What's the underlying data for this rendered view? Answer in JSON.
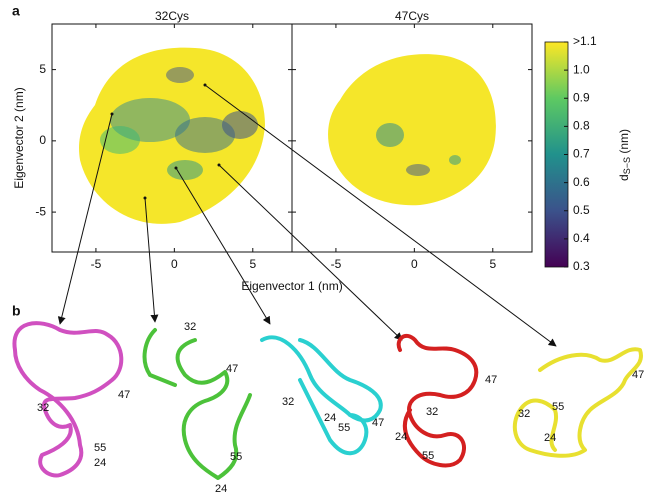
{
  "panel_labels": [
    "a",
    "b"
  ],
  "panels": [
    {
      "title": "32Cys"
    },
    {
      "title": "47Cys"
    }
  ],
  "xlabel": "Eigenvector 1 (nm)",
  "ylabel": "Eigenvector 2 (nm)",
  "xlim": [
    -7.8,
    7.5
  ],
  "ylim": [
    -7.8,
    8.2
  ],
  "xticks": [
    -5,
    0,
    5
  ],
  "yticks": [
    -5,
    0,
    5
  ],
  "colorbar": {
    "label": {
      "main": "d",
      "sub": "S−S",
      "unit": " (nm)"
    },
    "lim": [
      0.3,
      1.1
    ],
    "ticks": [
      {
        "value": 1.1,
        "label": ">1.1"
      },
      {
        "value": 1.0,
        "label": "1.0"
      },
      0.9,
      0.8,
      0.7,
      0.6,
      0.5,
      0.4,
      0.3
    ]
  },
  "structures": [
    {
      "labels": [
        "32",
        "47",
        "55",
        "24"
      ]
    },
    {
      "labels": [
        "32",
        "47",
        "55",
        "24"
      ]
    },
    {
      "labels": [
        "32",
        "24",
        "55",
        "47"
      ]
    },
    {
      "labels": [
        "47",
        "32",
        "24",
        "55"
      ]
    },
    {
      "labels": [
        "47",
        "32",
        "55",
        "24"
      ]
    }
  ]
}
